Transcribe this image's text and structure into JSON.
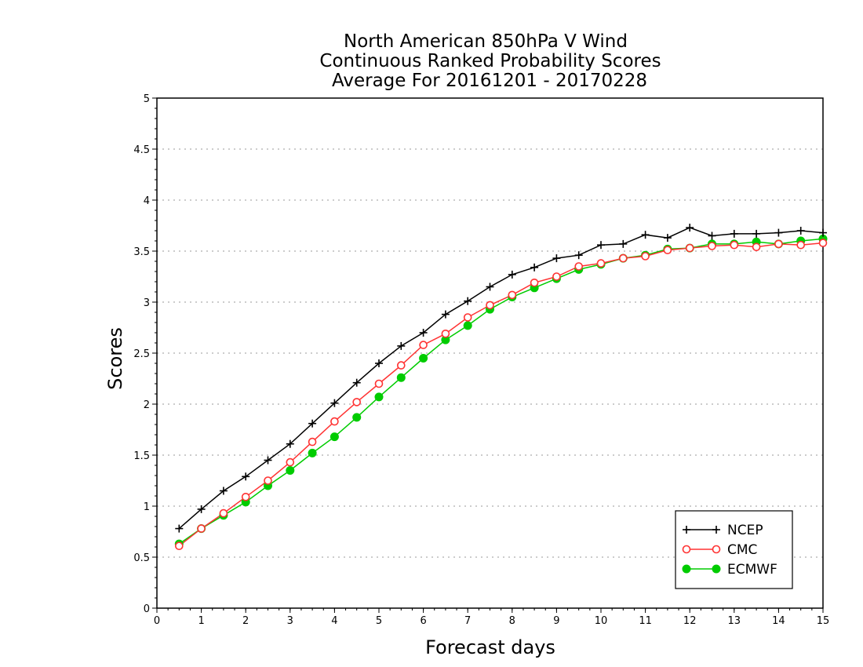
{
  "chart_data": {
    "type": "line",
    "title_lines": [
      "North American 850hPa V Wind",
      "Continuous Ranked Probability Scores",
      "Average For 20161201 - 20170228"
    ],
    "xlabel": "Forecast days",
    "ylabel": "Scores",
    "xlim": [
      0,
      15
    ],
    "ylim": [
      0,
      5
    ],
    "xticks": [
      0,
      1,
      2,
      3,
      4,
      5,
      6,
      7,
      8,
      9,
      10,
      11,
      12,
      13,
      14,
      15
    ],
    "yticks": [
      0,
      0.5,
      1,
      1.5,
      2,
      2.5,
      3,
      3.5,
      4,
      4.5,
      5
    ],
    "ytick_labels": [
      "0",
      "0.5",
      "1",
      "1.5",
      "2",
      "2.5",
      "3",
      "3.5",
      "4",
      "4.5",
      "5"
    ],
    "grid": "horizontal dotted",
    "legend_position": "bottom-right",
    "x": [
      0.5,
      1,
      1.5,
      2,
      2.5,
      3,
      3.5,
      4,
      4.5,
      5,
      5.5,
      6,
      6.5,
      7,
      7.5,
      8,
      8.5,
      9,
      9.5,
      10,
      10.5,
      11,
      11.5,
      12,
      12.5,
      13,
      13.5,
      14,
      14.5,
      15
    ],
    "series": [
      {
        "name": "NCEP",
        "color": "#000000",
        "marker": "plus",
        "values": [
          0.78,
          0.97,
          1.15,
          1.29,
          1.45,
          1.61,
          1.81,
          2.01,
          2.21,
          2.4,
          2.57,
          2.7,
          2.88,
          3.01,
          3.15,
          3.27,
          3.34,
          3.43,
          3.46,
          3.56,
          3.57,
          3.66,
          3.63,
          3.73,
          3.65,
          3.67,
          3.67,
          3.68,
          3.7,
          3.68
        ]
      },
      {
        "name": "CMC",
        "color": "#ff3333",
        "marker": "open-circle",
        "values": [
          0.61,
          0.78,
          0.93,
          1.09,
          1.25,
          1.43,
          1.63,
          1.83,
          2.02,
          2.2,
          2.38,
          2.58,
          2.69,
          2.85,
          2.97,
          3.07,
          3.19,
          3.25,
          3.35,
          3.38,
          3.43,
          3.45,
          3.51,
          3.53,
          3.55,
          3.56,
          3.54,
          3.57,
          3.56,
          3.58
        ]
      },
      {
        "name": "ECMWF",
        "color": "#00cc00",
        "marker": "filled-circle",
        "values": [
          0.63,
          0.78,
          0.91,
          1.04,
          1.2,
          1.35,
          1.52,
          1.68,
          1.87,
          2.07,
          2.26,
          2.45,
          2.63,
          2.77,
          2.93,
          3.05,
          3.14,
          3.23,
          3.32,
          3.37,
          3.43,
          3.46,
          3.52,
          3.53,
          3.57,
          3.57,
          3.59,
          3.57,
          3.6,
          3.62
        ]
      }
    ]
  }
}
